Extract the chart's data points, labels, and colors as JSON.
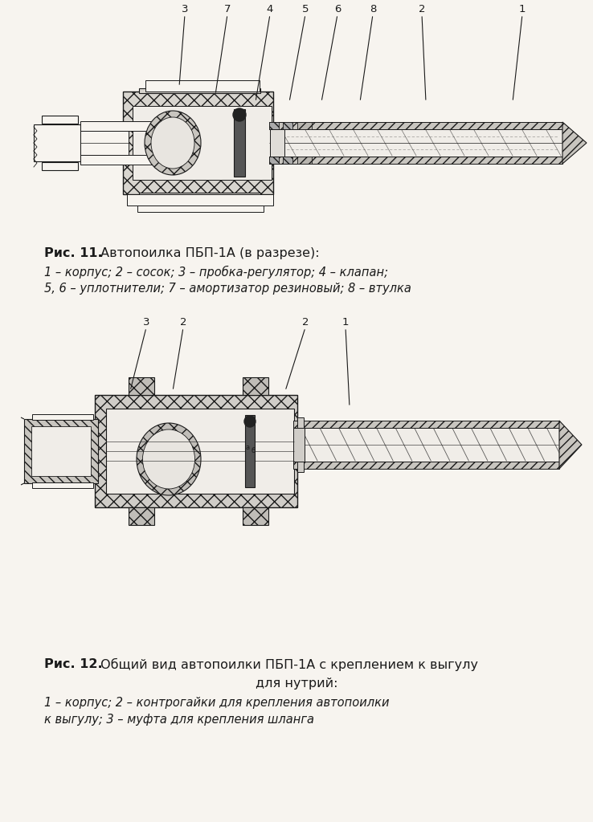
{
  "fig_width": 7.38,
  "fig_height": 10.24,
  "dpi": 100,
  "bg_color": "#f7f4ef",
  "black": "#1a1a1a",
  "fig11_caption_bold": "Рис. 11.",
  "fig11_caption_normal": " Автопоилка ПБП-1А (в разрезе):",
  "fig11_line2": "1 – корпус; 2 – сосок; 3 – пробка-регулятор; 4 – клапан;",
  "fig11_line3": "5, 6 – уплотнители; 7 – амортизатор резиновый; 8 – втулка",
  "fig12_caption_bold": "Рис. 12.",
  "fig12_caption_normal": " Общий вид автопоилки ПБП-1А с креплением к выгулу",
  "fig12_line2": "для нутрий:",
  "fig12_line3": "1 – корпус; 2 – контрогайки для крепления автопоилки",
  "fig12_line4": "к выгулу; 3 – муфта для крепления шланга",
  "fig11_leaders": [
    [
      "3",
      230,
      18,
      223,
      108
    ],
    [
      "7",
      283,
      18,
      268,
      118
    ],
    [
      "4",
      336,
      18,
      318,
      127
    ],
    [
      "5",
      380,
      18,
      360,
      127
    ],
    [
      "6",
      420,
      18,
      400,
      127
    ],
    [
      "8",
      464,
      18,
      448,
      127
    ],
    [
      "2",
      525,
      18,
      530,
      127
    ],
    [
      "1",
      650,
      18,
      638,
      127
    ]
  ],
  "fig12_leaders": [
    [
      "3",
      182,
      408,
      162,
      487
    ],
    [
      "2",
      228,
      408,
      215,
      487
    ],
    [
      "2",
      380,
      408,
      355,
      487
    ],
    [
      "1",
      430,
      408,
      435,
      507
    ]
  ]
}
